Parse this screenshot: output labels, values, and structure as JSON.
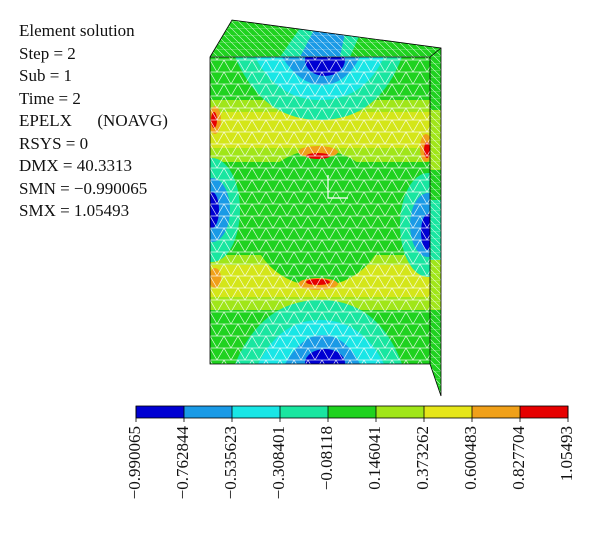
{
  "info_lines": [
    "Element solution",
    "Step = 2",
    "Sub = 1",
    "Time = 2",
    "EPELX      (NOAVG)",
    "RSYS = 0",
    "DMX = 40.3313",
    "SMN = −0.990065",
    "SMX = 1.05493"
  ],
  "legend": {
    "labels": [
      "−0.990065",
      "−0.762844",
      "−0.535623",
      "−0.308401",
      "−0.08118",
      "0.146041",
      "0.373262",
      "0.600483",
      "0.827704",
      "1.05493"
    ],
    "colors": [
      "#0000d2",
      "#1a9ae6",
      "#19e6e6",
      "#19e6a0",
      "#1fd21f",
      "#a0e619",
      "#e6e619",
      "#f0a019",
      "#e60000"
    ]
  },
  "colors": {
    "mesh_line": "#ffffff",
    "outline": "#000000"
  }
}
